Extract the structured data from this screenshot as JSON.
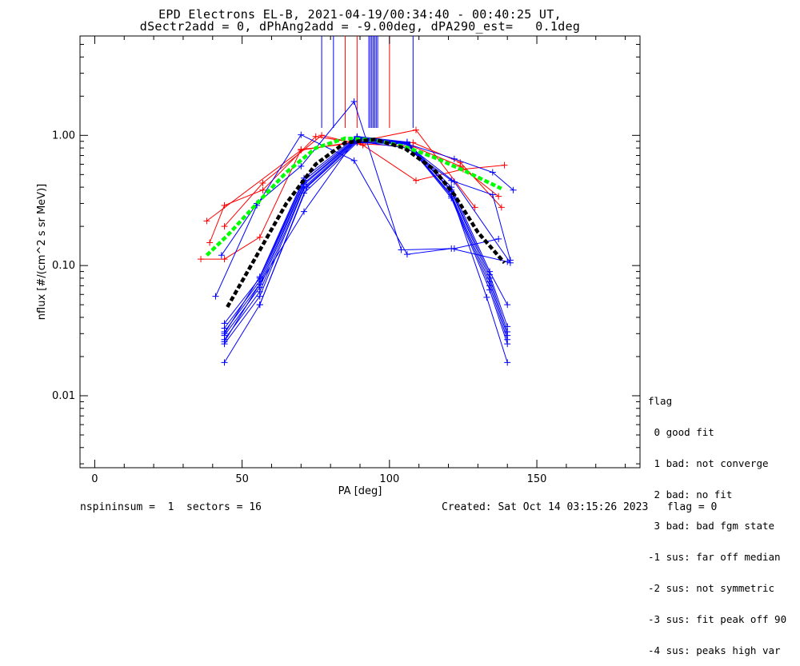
{
  "chart_data": {
    "type": "line",
    "title": "EPD Electrons EL-B, 2021-04-19/00:34:40 - 00:40:25 UT,",
    "subtitle": "dSectr2add = 0, dPhAng2add = -9.00deg, dPA290_est=   0.1deg",
    "xlabel": "PA [deg]",
    "ylabel": "nflux [#/(cm^2 s sr MeV)]",
    "xlim": [
      -5,
      185
    ],
    "ylim": [
      0.0028,
      5.8
    ],
    "yscale": "log",
    "xticks": [
      0,
      50,
      100,
      150
    ],
    "yticks": [
      0.01,
      0.1,
      1.0
    ],
    "ytick_labels": [
      "0.01",
      "0.10",
      "1.00"
    ],
    "grid": false,
    "legend_title": "flag",
    "legend": [
      " 0 good fit",
      " 1 bad: not converge",
      " 2 bad: no fit",
      " 3 bad: bad fgm state",
      "-1 sus: far off median",
      "-2 sus: not symmetric",
      "-3 sus: fit peak off 90",
      "-4 sus: peaks high var"
    ],
    "vertical_marker_lines": [
      {
        "x": 77,
        "color": "#0000ff"
      },
      {
        "x": 81,
        "color": "#0000ff"
      },
      {
        "x": 85,
        "color": "#ff0000"
      },
      {
        "x": 89,
        "color": "#ff0000"
      },
      {
        "x": 93,
        "color": "#0000ff"
      },
      {
        "x": 93.5,
        "color": "#0000ff"
      },
      {
        "x": 94,
        "color": "#0000ff"
      },
      {
        "x": 94.5,
        "color": "#0000ff"
      },
      {
        "x": 95,
        "color": "#0000ff"
      },
      {
        "x": 95.5,
        "color": "#0000ff"
      },
      {
        "x": 96,
        "color": "#0000ff"
      },
      {
        "x": 100,
        "color": "#ff0000"
      },
      {
        "x": 108,
        "color": "#0000ff"
      }
    ],
    "series": [
      {
        "color": "#ff0000",
        "x": [
          38,
          70,
          92,
          109,
          129
        ],
        "y": [
          0.22,
          0.77,
          0.92,
          1.1,
          0.28
        ]
      },
      {
        "color": "#ff0000",
        "x": [
          44,
          57,
          77,
          91,
          109,
          125,
          139
        ],
        "y": [
          0.2,
          0.43,
          1.0,
          0.84,
          0.45,
          0.55,
          0.59
        ]
      },
      {
        "color": "#ff0000",
        "x": [
          36,
          44,
          56,
          70,
          89,
          108,
          124,
          138
        ],
        "y": [
          0.112,
          0.112,
          0.165,
          0.78,
          0.88,
          0.88,
          0.62,
          0.28
        ]
      },
      {
        "color": "#ff0000",
        "x": [
          39,
          44,
          57,
          75,
          91,
          108,
          124,
          137
        ],
        "y": [
          0.15,
          0.29,
          0.38,
          0.98,
          0.86,
          0.82,
          0.58,
          0.34
        ]
      },
      {
        "color": "#0000ff",
        "x": [
          41,
          55,
          70,
          88,
          106,
          121,
          140
        ],
        "y": [
          0.058,
          0.29,
          1.01,
          0.64,
          0.122,
          0.135,
          0.107
        ]
      },
      {
        "color": "#0000ff",
        "x": [
          43,
          55,
          70,
          88,
          104,
          122,
          137
        ],
        "y": [
          0.12,
          0.3,
          0.58,
          1.82,
          0.132,
          0.135,
          0.16
        ]
      },
      {
        "color": "#0000ff",
        "x": [
          44,
          56,
          71,
          89,
          106,
          122,
          141
        ],
        "y": [
          0.036,
          0.08,
          0.45,
          0.95,
          0.85,
          0.44,
          0.105
        ]
      },
      {
        "color": "#0000ff",
        "x": [
          44,
          56,
          71,
          89,
          106,
          121,
          133,
          140
        ],
        "y": [
          0.018,
          0.05,
          0.36,
          0.88,
          0.86,
          0.35,
          0.057,
          0.018
        ]
      },
      {
        "color": "#0000ff",
        "x": [
          44,
          56,
          71,
          89,
          106,
          121,
          134,
          140
        ],
        "y": [
          0.025,
          0.058,
          0.39,
          0.9,
          0.86,
          0.33,
          0.065,
          0.025
        ]
      },
      {
        "color": "#0000ff",
        "x": [
          44,
          56,
          71,
          89,
          106,
          121,
          134,
          140
        ],
        "y": [
          0.027,
          0.063,
          0.4,
          0.92,
          0.87,
          0.34,
          0.07,
          0.027
        ]
      },
      {
        "color": "#0000ff",
        "x": [
          44,
          56,
          71,
          89,
          106,
          121,
          134,
          140
        ],
        "y": [
          0.029,
          0.068,
          0.42,
          0.93,
          0.87,
          0.35,
          0.075,
          0.029
        ]
      },
      {
        "color": "#0000ff",
        "x": [
          44,
          56,
          71,
          89,
          106,
          121,
          134,
          140
        ],
        "y": [
          0.031,
          0.072,
          0.43,
          0.94,
          0.88,
          0.37,
          0.08,
          0.031
        ]
      },
      {
        "color": "#0000ff",
        "x": [
          44,
          56,
          71,
          89,
          106,
          121,
          134,
          140
        ],
        "y": [
          0.033,
          0.076,
          0.45,
          0.96,
          0.88,
          0.38,
          0.085,
          0.034
        ]
      },
      {
        "color": "#0000ff",
        "x": [
          44,
          56,
          71,
          89,
          106,
          121,
          134,
          140
        ],
        "y": [
          0.03,
          0.082,
          0.47,
          0.98,
          0.89,
          0.4,
          0.09,
          0.05
        ]
      },
      {
        "color": "#0000ff",
        "x": [
          44,
          71,
          89,
          106,
          122,
          135,
          142
        ],
        "y": [
          0.026,
          0.26,
          0.97,
          0.86,
          0.66,
          0.52,
          0.38
        ]
      },
      {
        "color": "#0000ff",
        "x": [
          56,
          72,
          89,
          106,
          121,
          135,
          141
        ],
        "y": [
          0.05,
          0.4,
          0.9,
          0.8,
          0.45,
          0.35,
          0.11
        ]
      }
    ],
    "fits": [
      {
        "color": "#00ff00",
        "style": "dashed",
        "x": [
          38,
          45,
          55,
          65,
          75,
          85,
          95,
          105,
          115,
          125,
          138
        ],
        "y": [
          0.12,
          0.17,
          0.3,
          0.52,
          0.8,
          0.95,
          0.92,
          0.82,
          0.68,
          0.54,
          0.39
        ]
      },
      {
        "color": "#000000",
        "style": "dashed",
        "x": [
          45,
          55,
          65,
          75,
          85,
          95,
          105,
          115,
          122,
          130,
          139
        ],
        "y": [
          0.048,
          0.12,
          0.3,
          0.6,
          0.88,
          0.93,
          0.8,
          0.55,
          0.35,
          0.18,
          0.105
        ]
      }
    ]
  },
  "footer": {
    "left": "nspininsum =  1  sectors = 16",
    "right": "Created: Sat Oct 14 03:15:26 2023   flag = 0"
  }
}
